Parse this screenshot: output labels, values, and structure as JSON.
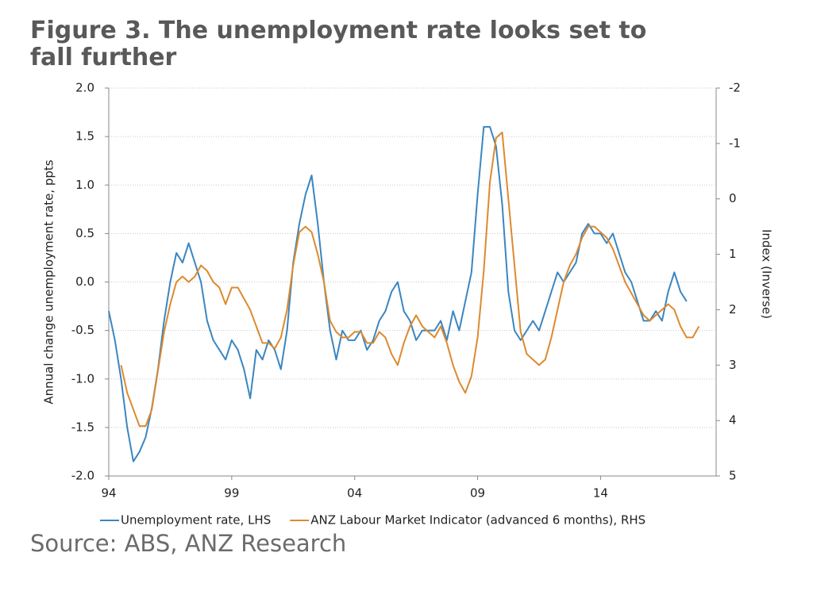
{
  "chart_data": {
    "type": "line",
    "title": "Figure 3. The unemployment rate looks set to fall further",
    "source": "Source: ABS, ANZ Research",
    "ylabel": "Annual change unemployment rate, ppts",
    "y2label": "Index (Inverse)",
    "xlim": [
      1994,
      2018.7
    ],
    "xticks": [
      {
        "value": 1994,
        "label": "94"
      },
      {
        "value": 1999,
        "label": "99"
      },
      {
        "value": 2004,
        "label": "04"
      },
      {
        "value": 2009,
        "label": "09"
      },
      {
        "value": 2014,
        "label": "14"
      }
    ],
    "ylim": [
      -2,
      2
    ],
    "yticks": [
      {
        "value": -2,
        "label": "-2.0"
      },
      -1.5,
      {
        "value": -1,
        "label": "-1.0"
      },
      -0.5,
      {
        "value": 0,
        "label": "0.0"
      },
      0.5,
      {
        "value": 1,
        "label": "1.0"
      },
      1.5,
      {
        "value": 2,
        "label": "2.0"
      }
    ],
    "y2lim": [
      5,
      -2
    ],
    "y2ticks": [
      -2,
      -1,
      0,
      1,
      2,
      3,
      4,
      5
    ],
    "grid": true,
    "legend": "bottom",
    "series": [
      {
        "name": "Unemployment rate, LHS",
        "color": "#3a86c0",
        "x": [
          1994,
          1994.25,
          1994.5,
          1994.75,
          1995,
          1995.25,
          1995.5,
          1995.75,
          1996,
          1996.25,
          1996.5,
          1996.75,
          1997,
          1997.25,
          1997.5,
          1997.75,
          1998,
          1998.25,
          1998.5,
          1998.75,
          1999,
          1999.25,
          1999.5,
          1999.75,
          2000,
          2000.25,
          2000.5,
          2000.75,
          2001,
          2001.25,
          2001.5,
          2001.75,
          2002,
          2002.25,
          2002.5,
          2002.75,
          2003,
          2003.25,
          2003.5,
          2003.75,
          2004,
          2004.25,
          2004.5,
          2004.75,
          2005,
          2005.25,
          2005.5,
          2005.75,
          2006,
          2006.25,
          2006.5,
          2006.75,
          2007,
          2007.25,
          2007.5,
          2007.75,
          2008,
          2008.25,
          2008.5,
          2008.75,
          2009,
          2009.25,
          2009.5,
          2009.75,
          2010,
          2010.25,
          2010.5,
          2010.75,
          2011,
          2011.25,
          2011.5,
          2011.75,
          2012,
          2012.25,
          2012.5,
          2012.75,
          2013,
          2013.25,
          2013.5,
          2013.75,
          2014,
          2014.25,
          2014.5,
          2014.75,
          2015,
          2015.25,
          2015.5,
          2015.75,
          2016,
          2016.25,
          2016.5,
          2016.75,
          2017,
          2017.25,
          2017.5
        ],
        "values": [
          -0.3,
          -0.6,
          -1.0,
          -1.5,
          -1.85,
          -1.75,
          -1.6,
          -1.3,
          -0.9,
          -0.4,
          0.0,
          0.3,
          0.2,
          0.4,
          0.2,
          0.0,
          -0.4,
          -0.6,
          -0.7,
          -0.8,
          -0.6,
          -0.7,
          -0.9,
          -1.2,
          -0.7,
          -0.8,
          -0.6,
          -0.7,
          -0.9,
          -0.5,
          0.2,
          0.6,
          0.9,
          1.1,
          0.6,
          0.0,
          -0.5,
          -0.8,
          -0.5,
          -0.6,
          -0.6,
          -0.5,
          -0.7,
          -0.6,
          -0.4,
          -0.3,
          -0.1,
          0.0,
          -0.3,
          -0.4,
          -0.6,
          -0.5,
          -0.5,
          -0.5,
          -0.4,
          -0.6,
          -0.3,
          -0.5,
          -0.2,
          0.1,
          0.9,
          1.6,
          1.6,
          1.4,
          0.8,
          -0.1,
          -0.5,
          -0.6,
          -0.5,
          -0.4,
          -0.5,
          -0.3,
          -0.1,
          0.1,
          0.0,
          0.1,
          0.2,
          0.5,
          0.6,
          0.5,
          0.5,
          0.4,
          0.5,
          0.3,
          0.1,
          0.0,
          -0.2,
          -0.4,
          -0.4,
          -0.3,
          -0.4,
          -0.1,
          0.1,
          -0.1,
          -0.2
        ]
      },
      {
        "name": "ANZ Labour Market Indicator (advanced 6 months), RHS",
        "color": "#dc8a2e",
        "axis": "y2",
        "x": [
          1994.5,
          1994.75,
          1995,
          1995.25,
          1995.5,
          1995.75,
          1996,
          1996.25,
          1996.5,
          1996.75,
          1997,
          1997.25,
          1997.5,
          1997.75,
          1998,
          1998.25,
          1998.5,
          1998.75,
          1999,
          1999.25,
          1999.5,
          1999.75,
          2000,
          2000.25,
          2000.5,
          2000.75,
          2001,
          2001.25,
          2001.5,
          2001.75,
          2002,
          2002.25,
          2002.5,
          2002.75,
          2003,
          2003.25,
          2003.5,
          2003.75,
          2004,
          2004.25,
          2004.5,
          2004.75,
          2005,
          2005.25,
          2005.5,
          2005.75,
          2006,
          2006.25,
          2006.5,
          2006.75,
          2007,
          2007.25,
          2007.5,
          2007.75,
          2008,
          2008.25,
          2008.5,
          2008.75,
          2009,
          2009.25,
          2009.5,
          2009.75,
          2010,
          2010.25,
          2010.5,
          2010.75,
          2011,
          2011.25,
          2011.5,
          2011.75,
          2012,
          2012.25,
          2012.5,
          2012.75,
          2013,
          2013.25,
          2013.5,
          2013.75,
          2014,
          2014.25,
          2014.5,
          2014.75,
          2015,
          2015.25,
          2015.5,
          2015.75,
          2016,
          2016.25,
          2016.5,
          2016.75,
          2017,
          2017.25,
          2017.5,
          2017.75,
          2018
        ],
        "values": [
          3.0,
          3.5,
          3.8,
          4.1,
          4.1,
          3.8,
          3.1,
          2.4,
          1.9,
          1.5,
          1.4,
          1.5,
          1.4,
          1.2,
          1.3,
          1.5,
          1.6,
          1.9,
          1.6,
          1.6,
          1.8,
          2.0,
          2.3,
          2.6,
          2.6,
          2.7,
          2.5,
          2.0,
          1.2,
          0.6,
          0.5,
          0.6,
          1.0,
          1.5,
          2.2,
          2.4,
          2.5,
          2.5,
          2.4,
          2.4,
          2.6,
          2.6,
          2.4,
          2.5,
          2.8,
          3.0,
          2.6,
          2.3,
          2.1,
          2.3,
          2.4,
          2.5,
          2.3,
          2.6,
          3.0,
          3.3,
          3.5,
          3.2,
          2.5,
          1.3,
          -0.3,
          -1.1,
          -1.2,
          0.0,
          1.2,
          2.4,
          2.8,
          2.9,
          3.0,
          2.9,
          2.5,
          2.0,
          1.5,
          1.2,
          1.0,
          0.7,
          0.5,
          0.5,
          0.6,
          0.7,
          0.9,
          1.2,
          1.5,
          1.7,
          1.9,
          2.1,
          2.2,
          2.1,
          2.0,
          1.9,
          2.0,
          2.3,
          2.5,
          2.5,
          2.3
        ]
      }
    ]
  }
}
